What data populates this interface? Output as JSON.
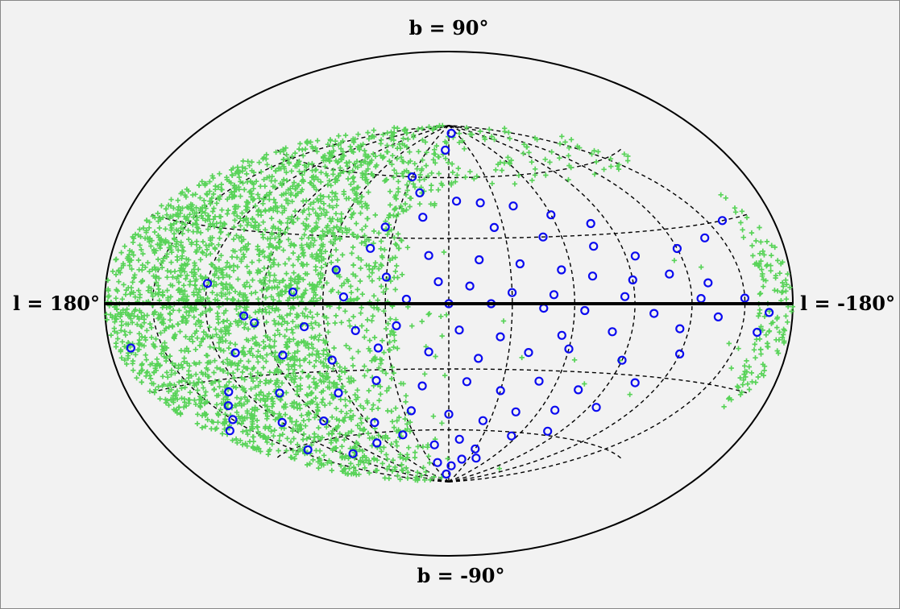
{
  "chart_data": {
    "type": "scatter",
    "projection": "aitoff-hammer (galactic)",
    "labels": {
      "top": "b = 90°",
      "bottom": "b = -90°",
      "left": "l = 180°",
      "right": "l = -180°"
    },
    "grid": {
      "meridians_l_deg": [
        -150,
        -120,
        -90,
        -60,
        -30,
        0,
        30,
        60,
        90,
        120,
        150
      ],
      "parallels_b_deg": [
        -60,
        -30,
        30,
        60
      ],
      "equator_bold": true,
      "line_style": "dashed"
    },
    "colors": {
      "green_series": "#59d359",
      "blue_series": "#0b0bf0",
      "background": "#f2f2f2"
    },
    "series": [
      {
        "marker": "plus",
        "color": "#59d359",
        "approx_count": 3000,
        "note_distribution": "dense concentration at l between +60 and +180 in all latitudes, plus bands near b = +60 and northern edges; sparse for l < 0 except near the map boundary"
      },
      {
        "marker": "circle",
        "color": "#0b0bf0",
        "points_lb_deg": [
          [
            -10,
            85
          ],
          [
            5,
            75
          ],
          [
            30,
            60
          ],
          [
            20,
            52
          ],
          [
            -5,
            48
          ],
          [
            -20,
            47
          ],
          [
            -40,
            45
          ],
          [
            -60,
            40
          ],
          [
            -80,
            35
          ],
          [
            15,
            40
          ],
          [
            35,
            35
          ],
          [
            -25,
            35
          ],
          [
            -50,
            30
          ],
          [
            -75,
            25
          ],
          [
            -95,
            20
          ],
          [
            -120,
            22
          ],
          [
            -140,
            25
          ],
          [
            -160,
            30
          ],
          [
            40,
            25
          ],
          [
            10,
            22
          ],
          [
            -15,
            20
          ],
          [
            -35,
            18
          ],
          [
            -55,
            15
          ],
          [
            -70,
            12
          ],
          [
            -90,
            10
          ],
          [
            -110,
            12
          ],
          [
            -130,
            8
          ],
          [
            55,
            15
          ],
          [
            30,
            12
          ],
          [
            5,
            10
          ],
          [
            -10,
            8
          ],
          [
            -30,
            5
          ],
          [
            -50,
            4
          ],
          [
            -85,
            3
          ],
          [
            -125,
            2
          ],
          [
            -150,
            2
          ],
          [
            75,
            5
          ],
          [
            50,
            3
          ],
          [
            20,
            2
          ],
          [
            0,
            0
          ],
          [
            -20,
            0
          ],
          [
            -45,
            -2
          ],
          [
            -65,
            -3
          ],
          [
            -100,
            -4
          ],
          [
            -135,
            -5
          ],
          [
            -165,
            -3
          ],
          [
            95,
            -8
          ],
          [
            70,
            -10
          ],
          [
            45,
            -12
          ],
          [
            25,
            -10
          ],
          [
            -5,
            -12
          ],
          [
            -25,
            -15
          ],
          [
            -55,
            -14
          ],
          [
            -80,
            -12
          ],
          [
            -115,
            -10
          ],
          [
            -160,
            -10
          ],
          [
            110,
            -20
          ],
          [
            85,
            -22
          ],
          [
            60,
            -25
          ],
          [
            35,
            -20
          ],
          [
            10,
            -22
          ],
          [
            -15,
            -25
          ],
          [
            -40,
            -22
          ],
          [
            -60,
            -20
          ],
          [
            -90,
            -24
          ],
          [
            -120,
            -20
          ],
          [
            130,
            -35
          ],
          [
            100,
            -38
          ],
          [
            65,
            -40
          ],
          [
            40,
            -35
          ],
          [
            15,
            -38
          ],
          [
            -10,
            -36
          ],
          [
            -30,
            -40
          ],
          [
            -50,
            -35
          ],
          [
            -75,
            -38
          ],
          [
            -105,
            -33
          ],
          [
            150,
            -45
          ],
          [
            120,
            -50
          ],
          [
            90,
            -52
          ],
          [
            55,
            -55
          ],
          [
            25,
            -50
          ],
          [
            0,
            -52
          ],
          [
            -25,
            -55
          ],
          [
            -45,
            -50
          ],
          [
            -70,
            -48
          ],
          [
            -95,
            -45
          ],
          [
            140,
            -62
          ],
          [
            110,
            -68
          ],
          [
            70,
            -65
          ],
          [
            40,
            -62
          ],
          [
            15,
            -68
          ],
          [
            -10,
            -65
          ],
          [
            -30,
            -70
          ],
          [
            -55,
            -62
          ],
          [
            -80,
            -58
          ],
          [
            20,
            -78
          ],
          [
            -5,
            -80
          ],
          [
            -20,
            -76
          ],
          [
            10,
            -85
          ],
          [
            -40,
            -75
          ],
          [
            170,
            -15
          ],
          [
            165,
            -48
          ],
          [
            140,
            -40
          ],
          [
            120,
            8
          ],
          [
            100,
            -5
          ]
        ]
      }
    ]
  }
}
